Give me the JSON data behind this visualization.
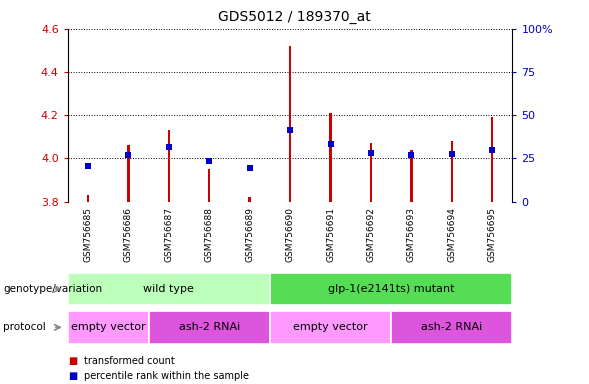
{
  "title": "GDS5012 / 189370_at",
  "samples": [
    "GSM756685",
    "GSM756686",
    "GSM756687",
    "GSM756688",
    "GSM756689",
    "GSM756690",
    "GSM756691",
    "GSM756692",
    "GSM756693",
    "GSM756694",
    "GSM756695"
  ],
  "red_values": [
    3.83,
    4.06,
    4.13,
    3.95,
    3.82,
    4.52,
    4.21,
    4.07,
    4.04,
    4.08,
    4.19
  ],
  "blue_values": [
    3.965,
    4.015,
    4.055,
    3.99,
    3.955,
    4.13,
    4.065,
    4.025,
    4.015,
    4.02,
    4.04
  ],
  "red_base": 3.8,
  "ylim_left": [
    3.8,
    4.6
  ],
  "ylim_right": [
    0,
    100
  ],
  "yticks_left": [
    3.8,
    4.0,
    4.2,
    4.4,
    4.6
  ],
  "yticks_right": [
    0,
    25,
    50,
    75,
    100
  ],
  "ytick_labels_right": [
    "0",
    "25",
    "50",
    "75",
    "100%"
  ],
  "red_color": "#cc0000",
  "blue_color": "#0000cc",
  "bar_width": 0.06,
  "genotype_groups": [
    {
      "label": "wild type",
      "start": 0,
      "end": 5,
      "color": "#bbffbb"
    },
    {
      "label": "glp-1(e2141ts) mutant",
      "start": 5,
      "end": 11,
      "color": "#55dd55"
    }
  ],
  "protocol_groups": [
    {
      "label": "empty vector",
      "start": 0,
      "end": 2,
      "color": "#ff99ff"
    },
    {
      "label": "ash-2 RNAi",
      "start": 2,
      "end": 5,
      "color": "#dd55dd"
    },
    {
      "label": "empty vector",
      "start": 5,
      "end": 8,
      "color": "#ff99ff"
    },
    {
      "label": "ash-2 RNAi",
      "start": 8,
      "end": 11,
      "color": "#dd55dd"
    }
  ],
  "legend_items": [
    {
      "label": "transformed count",
      "color": "#cc0000"
    },
    {
      "label": "percentile rank within the sample",
      "color": "#0000cc"
    }
  ],
  "genotype_label": "genotype/variation",
  "protocol_label": "protocol",
  "bg_color": "#ffffff",
  "grid_color": "#000000",
  "tick_label_color_left": "#cc0000",
  "tick_label_color_right": "#0000cc",
  "sample_bg_color": "#cccccc",
  "sample_divider_color": "#ffffff"
}
